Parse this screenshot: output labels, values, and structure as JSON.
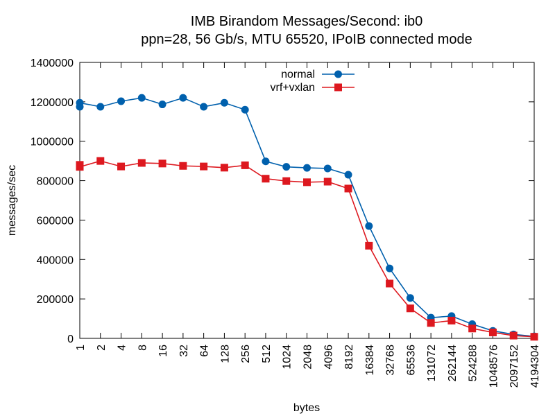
{
  "chart_data": {
    "type": "line",
    "title": "IMB Birandom Messages/Second: ib0",
    "subtitle": "ppn=28, 56 Gb/s, MTU 65520, IPoIB connected mode",
    "xlabel": "bytes",
    "ylabel": "messages/sec",
    "categories": [
      "1",
      "2",
      "4",
      "8",
      "16",
      "32",
      "64",
      "128",
      "256",
      "512",
      "1024",
      "2048",
      "4096",
      "8192",
      "16384",
      "32768",
      "65536",
      "131072",
      "262144",
      "524288",
      "1048576",
      "2097152",
      "4194304"
    ],
    "ylim": [
      0,
      1400000
    ],
    "yticks": [
      0,
      200000,
      400000,
      600000,
      800000,
      1000000,
      1200000,
      1400000
    ],
    "grid": false,
    "legend_position": "top-right",
    "series": [
      {
        "name": "normal",
        "color": "#0060ad",
        "marker": "circle",
        "values": [
          1195000,
          1175000,
          1203000,
          1220000,
          1187000,
          1220000,
          1175000,
          1195000,
          1160000,
          898000,
          870000,
          865000,
          862000,
          830000,
          570000,
          355000,
          205000,
          105000,
          113000,
          72000,
          38000,
          20000,
          10000
        ],
        "extra_points": [
          {
            "x": "1",
            "y": 1175000
          }
        ]
      },
      {
        "name": "vrf+vxlan",
        "color": "#dd181f",
        "marker": "square",
        "values": [
          870000,
          900000,
          872000,
          890000,
          887000,
          875000,
          872000,
          866000,
          878000,
          810000,
          798000,
          792000,
          795000,
          760000,
          470000,
          278000,
          152000,
          78000,
          90000,
          50000,
          30000,
          14000,
          8000
        ],
        "extra_points": [
          {
            "x": "1",
            "y": 880000
          }
        ]
      }
    ]
  }
}
